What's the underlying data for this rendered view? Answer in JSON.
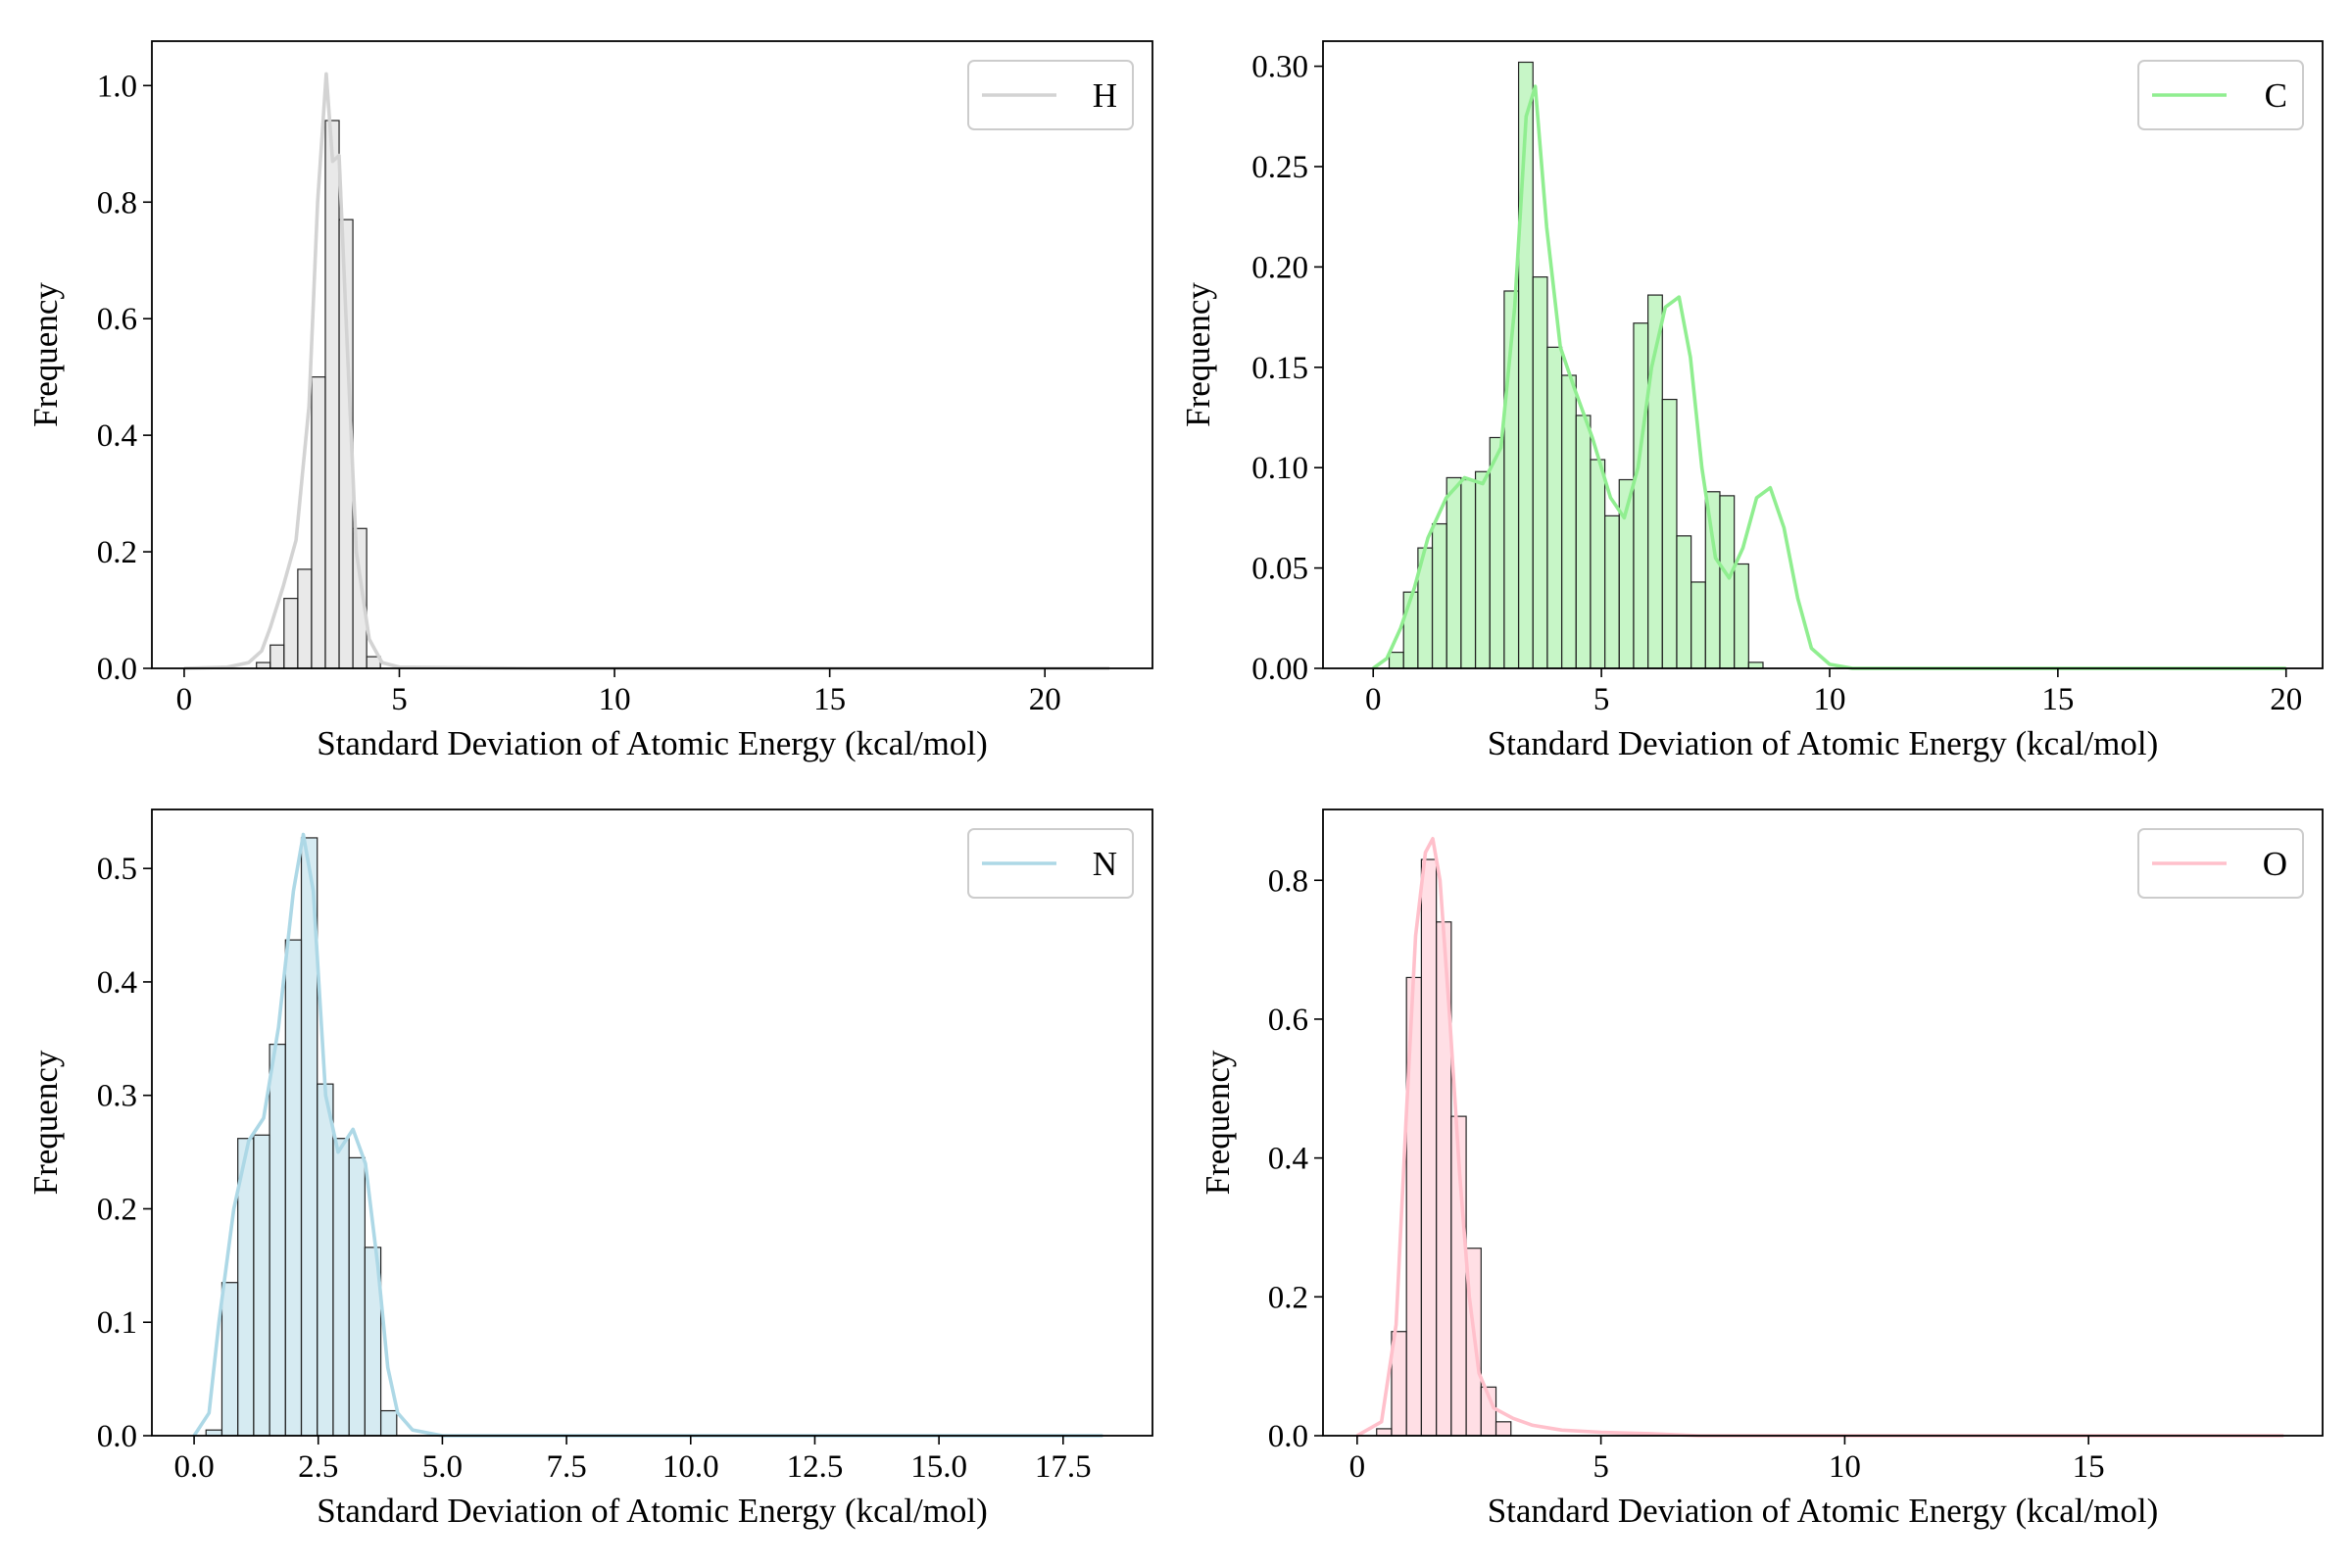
{
  "chart_data": [
    {
      "type": "bar",
      "xlabel": "Standard Deviation of Atomic Energy (kcal/mol)",
      "ylabel": "Frequency",
      "xlim": [
        -0.75,
        22.5
      ],
      "ylim": [
        0,
        1.0762
      ],
      "xticks": [
        0,
        5,
        10,
        15,
        20
      ],
      "xtick_labels": [
        "0",
        "5",
        "10",
        "15",
        "20"
      ],
      "yticks": [
        0.0,
        0.2,
        0.4,
        0.6,
        0.8,
        1.0
      ],
      "ytick_labels": [
        "0.0",
        "0.2",
        "0.4",
        "0.6",
        "0.8",
        "1.0"
      ],
      "legend": "top-right",
      "grid": false,
      "series": [
        {
          "name": "H",
          "color": "#d3d3d3",
          "bin_edges": [
            1.68,
            2.0,
            2.32,
            2.64,
            2.96,
            3.28,
            3.6,
            3.92,
            4.24,
            4.56
          ],
          "values": [
            0.01,
            0.04,
            0.12,
            0.17,
            0.5,
            0.94,
            0.77,
            0.24,
            0.02
          ],
          "kde_x": [
            0.0,
            1.0,
            1.5,
            1.8,
            2.0,
            2.3,
            2.6,
            2.9,
            3.1,
            3.3,
            3.45,
            3.6,
            3.75,
            4.0,
            4.3,
            4.6,
            5.0,
            8.0,
            21.5
          ],
          "kde_y": [
            0.0,
            0.002,
            0.01,
            0.03,
            0.07,
            0.14,
            0.22,
            0.45,
            0.8,
            1.02,
            0.87,
            0.88,
            0.62,
            0.2,
            0.05,
            0.01,
            0.002,
            0.0,
            0.0
          ]
        }
      ]
    },
    {
      "type": "bar",
      "xlabel": "Standard Deviation of Atomic Energy (kcal/mol)",
      "ylabel": "Frequency",
      "xlim": [
        -1.1,
        20.8
      ],
      "ylim": [
        0,
        0.3125
      ],
      "xticks": [
        0,
        5,
        10,
        15,
        20
      ],
      "xtick_labels": [
        "0",
        "5",
        "10",
        "15",
        "20"
      ],
      "yticks": [
        0.0,
        0.05,
        0.1,
        0.15,
        0.2,
        0.25,
        0.3
      ],
      "ytick_labels": [
        "0.00",
        "0.05",
        "0.10",
        "0.15",
        "0.20",
        "0.25",
        "0.30"
      ],
      "legend": "top-right",
      "grid": false,
      "series": [
        {
          "name": "C",
          "color": "#90ee90",
          "bin_start": 0.35,
          "bin_width": 0.315,
          "values": [
            0.008,
            0.038,
            0.06,
            0.072,
            0.095,
            0.094,
            0.098,
            0.115,
            0.188,
            0.302,
            0.195,
            0.16,
            0.146,
            0.126,
            0.104,
            0.076,
            0.094,
            0.172,
            0.186,
            0.134,
            0.066,
            0.043,
            0.088,
            0.086,
            0.052,
            0.003
          ],
          "kde_x": [
            0.0,
            0.3,
            0.6,
            0.9,
            1.2,
            1.6,
            2.0,
            2.4,
            2.8,
            3.1,
            3.35,
            3.55,
            3.8,
            4.1,
            4.4,
            4.8,
            5.2,
            5.5,
            5.8,
            6.1,
            6.4,
            6.7,
            6.95,
            7.2,
            7.5,
            7.8,
            8.1,
            8.4,
            8.7,
            9.0,
            9.3,
            9.6,
            10.0,
            10.5,
            20.0
          ],
          "kde_y": [
            0.0,
            0.005,
            0.02,
            0.04,
            0.065,
            0.085,
            0.095,
            0.092,
            0.11,
            0.18,
            0.275,
            0.29,
            0.22,
            0.16,
            0.14,
            0.115,
            0.085,
            0.075,
            0.1,
            0.15,
            0.18,
            0.185,
            0.155,
            0.1,
            0.055,
            0.045,
            0.06,
            0.085,
            0.09,
            0.07,
            0.035,
            0.01,
            0.002,
            0.0,
            0.0
          ]
        }
      ]
    },
    {
      "type": "bar",
      "xlabel": "Standard Deviation of Atomic Energy (kcal/mol)",
      "ylabel": "Frequency",
      "xlim": [
        -0.85,
        19.3
      ],
      "ylim": [
        0,
        0.552
      ],
      "xticks": [
        0.0,
        2.5,
        5.0,
        7.5,
        10.0,
        12.5,
        15.0,
        17.5
      ],
      "xtick_labels": [
        "0.0",
        "2.5",
        "5.0",
        "7.5",
        "10.0",
        "12.5",
        "15.0",
        "17.5"
      ],
      "yticks": [
        0.0,
        0.1,
        0.2,
        0.3,
        0.4,
        0.5
      ],
      "ytick_labels": [
        "0.0",
        "0.1",
        "0.2",
        "0.3",
        "0.4",
        "0.5"
      ],
      "legend": "top-right",
      "grid": false,
      "series": [
        {
          "name": "N",
          "color": "#add8e6",
          "bin_start": 0.24,
          "bin_width": 0.32,
          "values": [
            0.005,
            0.135,
            0.262,
            0.265,
            0.345,
            0.437,
            0.527,
            0.31,
            0.262,
            0.245,
            0.166,
            0.022
          ],
          "kde_x": [
            0.0,
            0.3,
            0.5,
            0.8,
            1.1,
            1.4,
            1.7,
            2.0,
            2.2,
            2.4,
            2.65,
            2.9,
            3.2,
            3.45,
            3.7,
            3.9,
            4.1,
            4.4,
            5.0,
            18.3
          ],
          "kde_y": [
            0.0,
            0.02,
            0.1,
            0.2,
            0.26,
            0.28,
            0.36,
            0.48,
            0.53,
            0.48,
            0.3,
            0.25,
            0.27,
            0.24,
            0.15,
            0.06,
            0.02,
            0.005,
            0.0,
            0.0
          ]
        }
      ]
    },
    {
      "type": "bar",
      "xlabel": "Standard Deviation of Atomic Energy (kcal/mol)",
      "ylabel": "Frequency",
      "xlim": [
        -0.7,
        19.8
      ],
      "ylim": [
        0,
        0.902
      ],
      "xticks": [
        0,
        5,
        10,
        15
      ],
      "xtick_labels": [
        "0",
        "5",
        "10",
        "15"
      ],
      "yticks": [
        0.0,
        0.2,
        0.4,
        0.6,
        0.8
      ],
      "ytick_labels": [
        "0.0",
        "0.2",
        "0.4",
        "0.6",
        "0.8"
      ],
      "legend": "top-right",
      "grid": false,
      "series": [
        {
          "name": "O",
          "color": "#ffc0cb",
          "bin_start": 0.4,
          "bin_width": 0.306,
          "values": [
            0.01,
            0.15,
            0.66,
            0.83,
            0.74,
            0.46,
            0.27,
            0.07,
            0.02
          ],
          "kde_x": [
            0.0,
            0.5,
            0.8,
            1.0,
            1.2,
            1.4,
            1.55,
            1.7,
            1.9,
            2.1,
            2.3,
            2.5,
            2.8,
            3.2,
            3.6,
            4.2,
            5.0,
            6.0,
            7.0,
            19.0
          ],
          "kde_y": [
            0.0,
            0.02,
            0.16,
            0.45,
            0.72,
            0.84,
            0.86,
            0.8,
            0.6,
            0.38,
            0.2,
            0.09,
            0.04,
            0.025,
            0.015,
            0.008,
            0.005,
            0.003,
            0.0,
            0.0
          ]
        }
      ]
    }
  ]
}
